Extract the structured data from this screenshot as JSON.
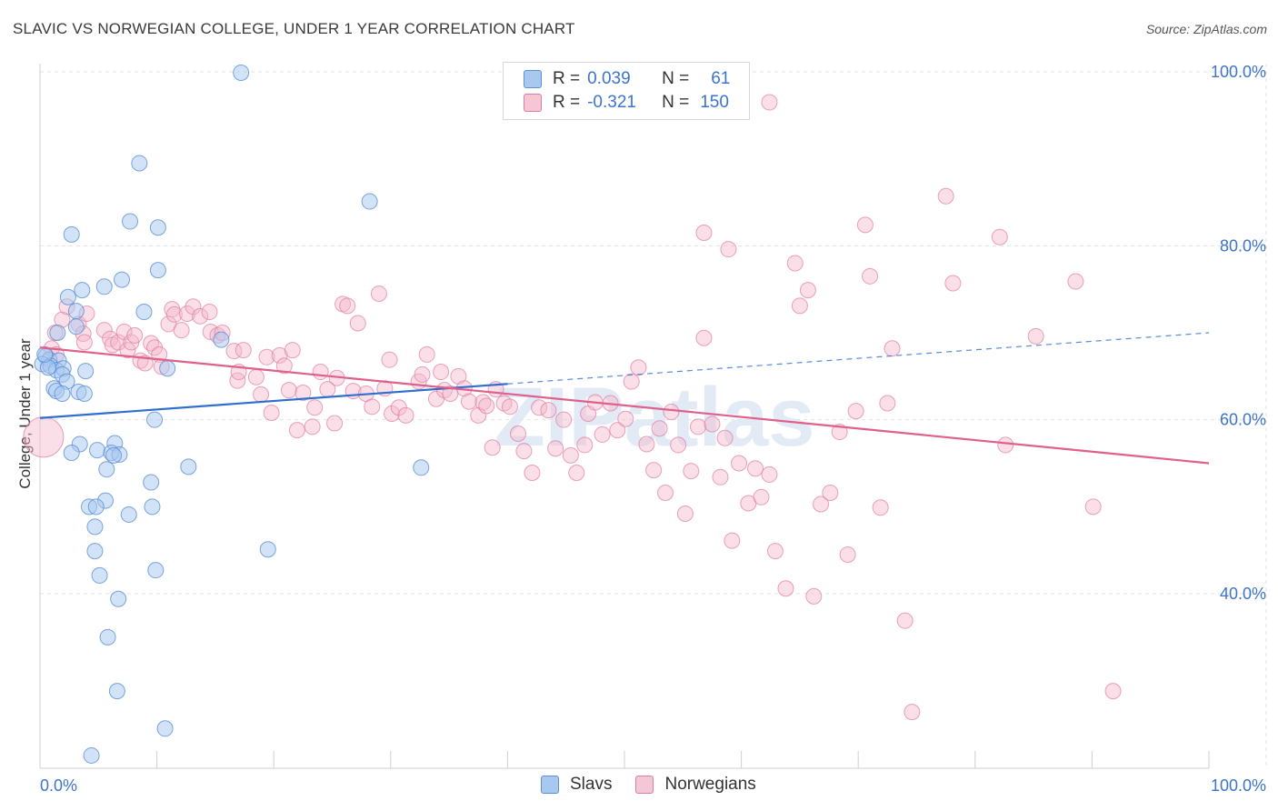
{
  "title": "SLAVIC VS NORWEGIAN COLLEGE, UNDER 1 YEAR CORRELATION CHART",
  "source": "Source: ZipAtlas.com",
  "watermark": "ZIPatlas",
  "legend": {
    "rows": [
      {
        "r_label": "R =",
        "r_value": "0.039",
        "n_label": "N =",
        "n_value": "61"
      },
      {
        "r_label": "R =",
        "r_value": "-0.321",
        "n_label": "N =",
        "n_value": "150"
      }
    ]
  },
  "bottom_legend": {
    "slavs": "Slavs",
    "norwegians": "Norwegians"
  },
  "colors": {
    "slavs_fill": "#a8c8f0",
    "slavs_stroke": "#5b8fd6",
    "slavs_line": "#2f6fd0",
    "norw_fill": "#f5b8cb",
    "norw_stroke": "#e07ca0",
    "norw_line": "#e0608c",
    "axis_label": "#3d74c9",
    "grid": "#e2e2e2"
  },
  "chart_data": {
    "type": "scatter",
    "title": "SLAVIC VS NORWEGIAN COLLEGE, UNDER 1 YEAR CORRELATION CHART",
    "xlabel": "",
    "ylabel": "College, Under 1 year",
    "xlim": [
      0,
      100
    ],
    "ylim": [
      20,
      102
    ],
    "x_ticks": [
      "0.0%",
      "100.0%"
    ],
    "y_ticks": [
      {
        "value": 40,
        "label": "40.0%"
      },
      {
        "value": 60,
        "label": "60.0%"
      },
      {
        "value": 80,
        "label": "80.0%"
      },
      {
        "value": 100,
        "label": "100.0%"
      }
    ],
    "grid": true,
    "legend_position": "top-center",
    "series": [
      {
        "name": "Slavs",
        "r": 0.039,
        "n": 61,
        "trend": {
          "x0": 0,
          "y0": 60.2,
          "x1": 100,
          "y1": 70.0,
          "solid_until": 40
        },
        "points": [
          [
            17.2,
            99.9
          ],
          [
            8.5,
            89.5
          ],
          [
            28.2,
            85.1
          ],
          [
            2.7,
            81.3
          ],
          [
            7.7,
            82.8
          ],
          [
            10.1,
            82.1
          ],
          [
            10.1,
            77.2
          ],
          [
            7.0,
            76.1
          ],
          [
            5.5,
            75.3
          ],
          [
            3.6,
            74.9
          ],
          [
            2.4,
            74.1
          ],
          [
            8.9,
            72.4
          ],
          [
            3.1,
            72.5
          ],
          [
            3.1,
            70.7
          ],
          [
            15.5,
            69.2
          ],
          [
            1.5,
            70.0
          ],
          [
            0.5,
            67.3
          ],
          [
            0.8,
            66.9
          ],
          [
            1.6,
            66.8
          ],
          [
            0.2,
            66.4
          ],
          [
            0.9,
            66.2
          ],
          [
            1.4,
            65.7
          ],
          [
            2.0,
            65.9
          ],
          [
            1.9,
            65.2
          ],
          [
            3.9,
            65.6
          ],
          [
            10.9,
            65.9
          ],
          [
            2.3,
            64.4
          ],
          [
            1.2,
            63.6
          ],
          [
            1.4,
            63.3
          ],
          [
            1.9,
            63.0
          ],
          [
            3.3,
            63.2
          ],
          [
            3.8,
            63.0
          ],
          [
            9.8,
            60.0
          ],
          [
            32.6,
            54.5
          ],
          [
            3.4,
            57.2
          ],
          [
            6.4,
            57.3
          ],
          [
            2.7,
            56.2
          ],
          [
            4.9,
            56.5
          ],
          [
            6.1,
            56.2
          ],
          [
            6.8,
            56.0
          ],
          [
            6.3,
            55.9
          ],
          [
            12.7,
            54.6
          ],
          [
            5.7,
            54.3
          ],
          [
            9.5,
            52.8
          ],
          [
            5.6,
            50.7
          ],
          [
            4.2,
            50.0
          ],
          [
            4.8,
            50.0
          ],
          [
            9.6,
            50.0
          ],
          [
            7.6,
            49.1
          ],
          [
            4.7,
            47.7
          ],
          [
            4.7,
            44.9
          ],
          [
            19.5,
            45.1
          ],
          [
            9.9,
            42.7
          ],
          [
            5.1,
            42.1
          ],
          [
            6.7,
            39.4
          ],
          [
            5.8,
            35.0
          ],
          [
            6.6,
            28.8
          ],
          [
            10.7,
            24.5
          ],
          [
            4.4,
            21.4
          ],
          [
            0.7,
            66.0
          ],
          [
            0.4,
            67.5
          ]
        ]
      },
      {
        "name": "Norwegians",
        "r": -0.321,
        "n": 150,
        "trend": {
          "x0": 0,
          "y0": 68.3,
          "x1": 100,
          "y1": 55.0
        },
        "points": [
          [
            0.3,
            58.0
          ],
          [
            1.0,
            68.2
          ],
          [
            1.3,
            70.0
          ],
          [
            1.4,
            67.5
          ],
          [
            1.9,
            71.5
          ],
          [
            2.3,
            73.0
          ],
          [
            3.3,
            71.0
          ],
          [
            3.7,
            69.9
          ],
          [
            3.8,
            68.9
          ],
          [
            4.0,
            72.2
          ],
          [
            5.5,
            70.3
          ],
          [
            6.0,
            69.3
          ],
          [
            6.2,
            68.6
          ],
          [
            6.7,
            68.9
          ],
          [
            7.2,
            70.1
          ],
          [
            7.5,
            68.0
          ],
          [
            7.8,
            68.9
          ],
          [
            8.1,
            69.7
          ],
          [
            8.6,
            66.8
          ],
          [
            9.0,
            66.5
          ],
          [
            9.5,
            68.8
          ],
          [
            9.8,
            68.3
          ],
          [
            10.2,
            67.5
          ],
          [
            10.4,
            66.1
          ],
          [
            11.0,
            71.0
          ],
          [
            11.3,
            72.7
          ],
          [
            11.5,
            72.1
          ],
          [
            12.1,
            70.3
          ],
          [
            12.6,
            72.2
          ],
          [
            13.1,
            73.0
          ],
          [
            13.7,
            71.9
          ],
          [
            14.5,
            72.4
          ],
          [
            14.6,
            70.1
          ],
          [
            15.2,
            69.7
          ],
          [
            15.6,
            70.0
          ],
          [
            16.6,
            67.9
          ],
          [
            16.9,
            64.5
          ],
          [
            17.0,
            65.5
          ],
          [
            17.4,
            68.0
          ],
          [
            18.5,
            64.9
          ],
          [
            18.9,
            62.9
          ],
          [
            19.4,
            67.2
          ],
          [
            19.8,
            60.8
          ],
          [
            20.5,
            67.4
          ],
          [
            20.9,
            66.2
          ],
          [
            21.3,
            63.4
          ],
          [
            21.6,
            68.0
          ],
          [
            22.0,
            58.8
          ],
          [
            22.5,
            63.1
          ],
          [
            23.3,
            59.2
          ],
          [
            23.5,
            61.4
          ],
          [
            24.0,
            65.5
          ],
          [
            24.6,
            63.5
          ],
          [
            25.2,
            59.6
          ],
          [
            25.4,
            64.8
          ],
          [
            25.9,
            73.3
          ],
          [
            26.3,
            73.1
          ],
          [
            26.8,
            63.3
          ],
          [
            27.2,
            71.1
          ],
          [
            27.9,
            63.0
          ],
          [
            28.4,
            61.5
          ],
          [
            29.0,
            74.5
          ],
          [
            29.5,
            63.6
          ],
          [
            29.9,
            66.9
          ],
          [
            30.1,
            60.7
          ],
          [
            30.7,
            61.4
          ],
          [
            31.3,
            60.5
          ],
          [
            32.4,
            64.4
          ],
          [
            32.7,
            65.2
          ],
          [
            33.1,
            67.5
          ],
          [
            33.9,
            62.4
          ],
          [
            34.3,
            65.5
          ],
          [
            34.6,
            63.4
          ],
          [
            35.1,
            63.0
          ],
          [
            35.8,
            65.0
          ],
          [
            36.3,
            63.6
          ],
          [
            36.7,
            62.1
          ],
          [
            37.5,
            60.5
          ],
          [
            37.9,
            62.0
          ],
          [
            38.2,
            61.6
          ],
          [
            38.7,
            56.8
          ],
          [
            39.0,
            63.5
          ],
          [
            39.7,
            61.9
          ],
          [
            40.2,
            61.5
          ],
          [
            40.9,
            58.4
          ],
          [
            41.4,
            56.4
          ],
          [
            42.1,
            53.9
          ],
          [
            42.7,
            61.4
          ],
          [
            43.5,
            61.1
          ],
          [
            44.1,
            56.7
          ],
          [
            44.8,
            60.0
          ],
          [
            45.4,
            55.9
          ],
          [
            45.9,
            53.9
          ],
          [
            46.6,
            57.1
          ],
          [
            46.9,
            60.7
          ],
          [
            47.5,
            62.0
          ],
          [
            48.1,
            58.3
          ],
          [
            48.8,
            61.9
          ],
          [
            49.4,
            58.8
          ],
          [
            50.1,
            60.1
          ],
          [
            50.6,
            64.4
          ],
          [
            51.2,
            66.0
          ],
          [
            51.9,
            57.2
          ],
          [
            52.5,
            54.2
          ],
          [
            53.0,
            59.0
          ],
          [
            53.5,
            51.6
          ],
          [
            54.0,
            60.9
          ],
          [
            54.6,
            57.1
          ],
          [
            55.2,
            49.2
          ],
          [
            55.7,
            54.1
          ],
          [
            56.3,
            59.2
          ],
          [
            56.8,
            69.4
          ],
          [
            57.5,
            59.5
          ],
          [
            58.2,
            53.4
          ],
          [
            58.6,
            57.9
          ],
          [
            59.2,
            46.1
          ],
          [
            59.8,
            55.0
          ],
          [
            60.6,
            50.4
          ],
          [
            61.2,
            54.4
          ],
          [
            61.7,
            51.1
          ],
          [
            62.4,
            53.7
          ],
          [
            62.9,
            44.9
          ],
          [
            63.8,
            40.6
          ],
          [
            64.6,
            78.0
          ],
          [
            65.0,
            73.1
          ],
          [
            65.7,
            74.9
          ],
          [
            66.2,
            39.7
          ],
          [
            66.8,
            50.3
          ],
          [
            67.6,
            51.6
          ],
          [
            68.4,
            58.6
          ],
          [
            69.1,
            44.5
          ],
          [
            69.8,
            61.0
          ],
          [
            70.6,
            82.4
          ],
          [
            71.0,
            76.5
          ],
          [
            71.9,
            49.9
          ],
          [
            72.5,
            61.9
          ],
          [
            72.9,
            68.2
          ],
          [
            74.0,
            36.9
          ],
          [
            74.6,
            26.4
          ],
          [
            77.5,
            85.7
          ],
          [
            78.1,
            75.7
          ],
          [
            82.1,
            81.0
          ],
          [
            82.6,
            57.1
          ],
          [
            85.2,
            69.6
          ],
          [
            88.6,
            75.9
          ],
          [
            90.1,
            50.0
          ],
          [
            91.8,
            28.8
          ],
          [
            56.8,
            81.5
          ],
          [
            58.9,
            79.6
          ],
          [
            62.4,
            96.5
          ]
        ]
      }
    ]
  }
}
